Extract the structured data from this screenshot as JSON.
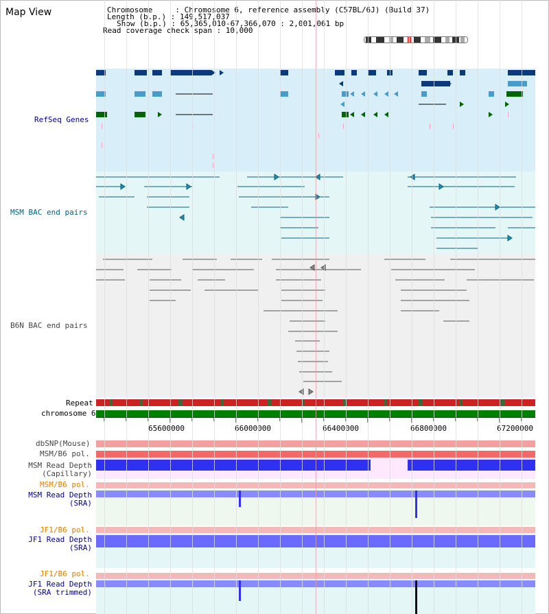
{
  "title": "Map View",
  "info": {
    "chromosome": "Chromosome     : Chromosome 6, reference assembly (C57BL/6J) (Build 37)",
    "length": "Length (b.p.) : 149,517,037",
    "show": "Show (b.p.) : 65,365,010-67,366,070 : 2,001,061 bp",
    "coverage": "Read coverage check span : 10,000"
  },
  "tracks": {
    "refseq": "RefSeq Genes",
    "msm_bac": "MSM BAC end pairs",
    "b6n_bac": "B6N BAC end pairs",
    "repeat": "Repeat",
    "chromosome": "chromosome 6",
    "dbsnp": "dbSNP(Mouse)",
    "msm_pol": "MSM/B6 pol.",
    "msm_depth_cap": "MSM Read Depth\n(Capillary)",
    "msm_pol2": "MSM/B6 pol.",
    "msm_depth_sra": "MSM Read Depth\n(SRA)",
    "jf1_pol": "JF1/B6 pol.",
    "jf1_depth_sra": "JF1 Read Depth\n(SRA)",
    "jf1_pol2": "JF1/B6 pol.",
    "jf1_depth_trim": "JF1 Read Depth\n(SRA trimmed)"
  },
  "axis": {
    "ticks": [
      "65600000",
      "66000000",
      "66400000",
      "66800000",
      "67200000"
    ]
  },
  "colors": {
    "refseq_bg": "#d8eef8",
    "msm_bac_bg": "#e4f6f6",
    "b6n_bac_bg": "#f0f0f0",
    "label_blue": "#00008b",
    "label_teal": "#00617f",
    "label_gray": "#444444",
    "label_orange": "#e08000",
    "gene_dark": "#0a3a78",
    "gene_mid": "#4a9cc8",
    "gene_green": "#006400",
    "chromosome_green": "#008000",
    "depth_blue": "#1428e8",
    "depth_lav": "#8080ff"
  }
}
